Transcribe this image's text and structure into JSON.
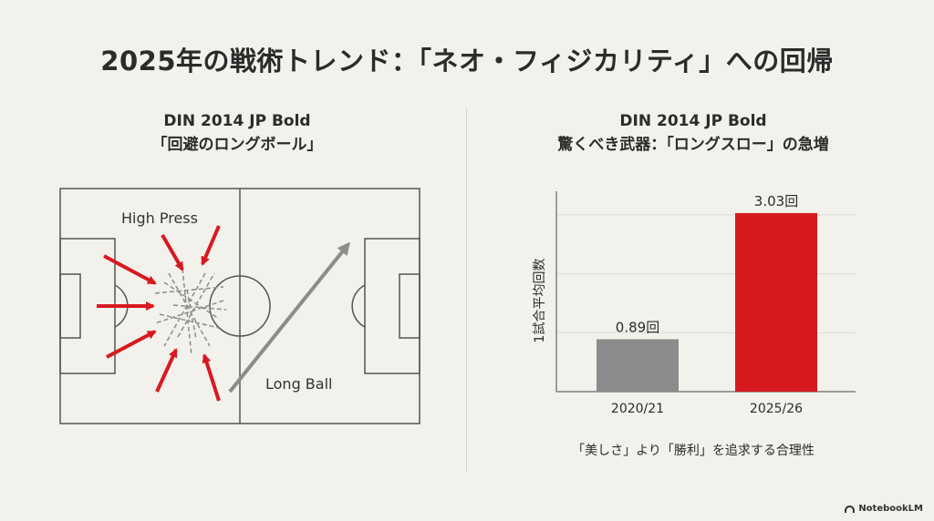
{
  "title": "2025年の戦術トレンド：「ネオ・フィジカリティ」への回帰",
  "left_panel": {
    "heading_line1": "DIN 2014 JP Bold",
    "heading_line2": "「回避のロングボール」",
    "press_label": "High Press",
    "ball_label": "Long Ball",
    "colors": {
      "press_arrow": "#d71920",
      "ball_arrow": "#8c8c8c",
      "pitch_line": "#555555"
    }
  },
  "right_panel": {
    "heading_line1": "DIN 2014 JP Bold",
    "heading_line2": "驚くべき武器：「ロングスロー」の急増",
    "footnote": "「美しさ」より「勝利」を追求する合理性"
  },
  "chart_data": {
    "type": "bar",
    "categories": [
      "2020/21",
      "2025/26"
    ],
    "values": [
      0.89,
      3.03
    ],
    "data_labels": [
      "0.89回",
      "3.03回"
    ],
    "colors": [
      "#8c8c8c",
      "#d71920"
    ],
    "ylabel": "1試合平均回数",
    "ylim": [
      0,
      3.4
    ],
    "grid": true
  },
  "brand": "NotebookLM"
}
